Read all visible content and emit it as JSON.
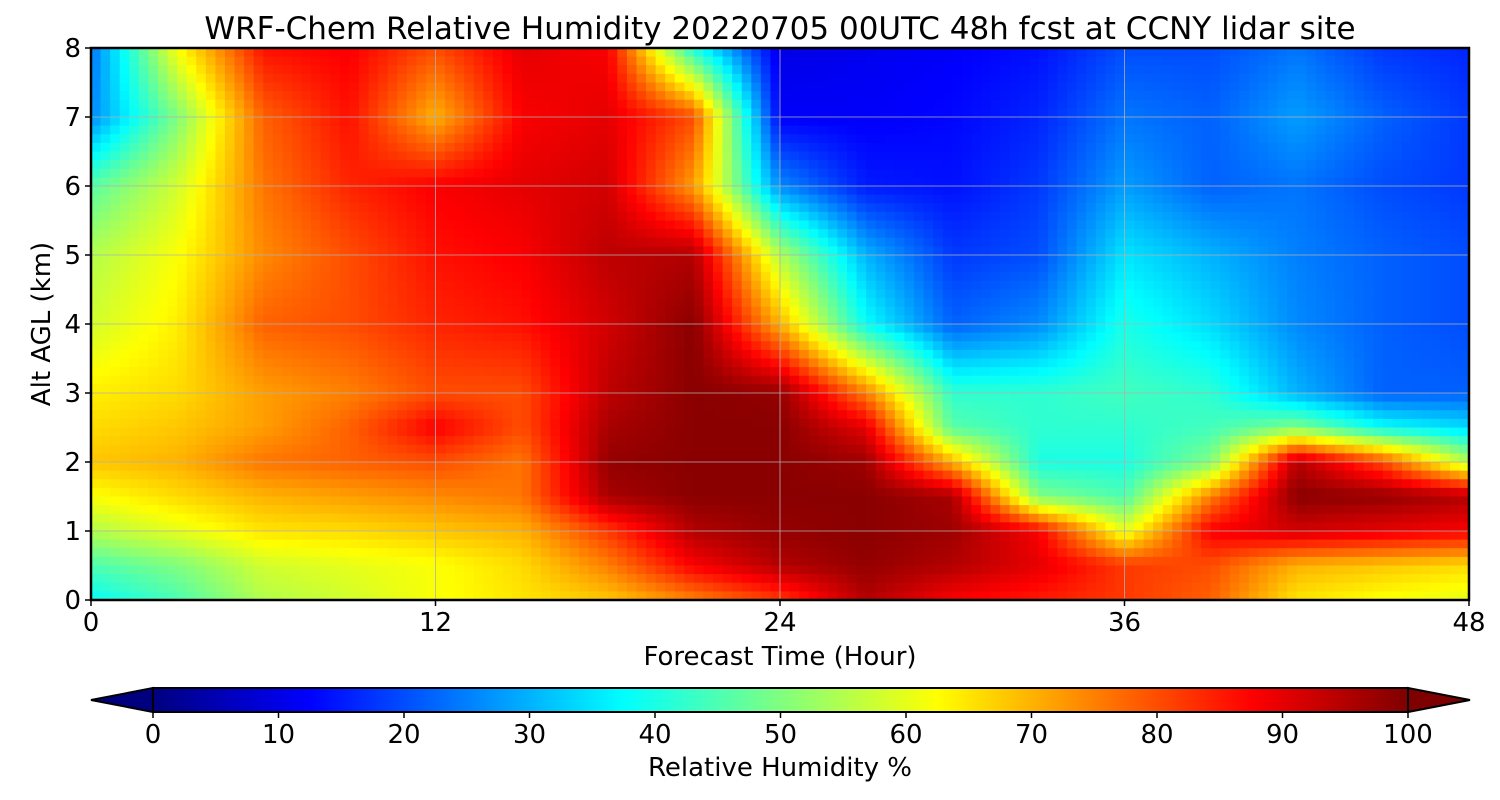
{
  "chart_data": {
    "type": "heatmap",
    "title": "WRF-Chem Relative Humidity 20220705 00UTC 48h fcst at CCNY lidar site",
    "xlabel": "Forecast Time (Hour)",
    "ylabel": "Alt AGL (km)",
    "xlim": [
      0,
      48
    ],
    "ylim": [
      0,
      8
    ],
    "x_ticks": [
      0,
      12,
      24,
      36,
      48
    ],
    "y_ticks": [
      0,
      1,
      2,
      3,
      4,
      5,
      6,
      7,
      8
    ],
    "grid": true,
    "colorbar": {
      "label": "Relative Humidity %",
      "colormap": "jet",
      "range": [
        0,
        100
      ],
      "ticks": [
        0,
        10,
        20,
        30,
        40,
        50,
        60,
        70,
        80,
        90,
        100
      ],
      "extend": "both",
      "orientation": "horizontal",
      "placement": "bottom"
    },
    "hours": [
      0,
      3,
      6,
      9,
      12,
      15,
      18,
      21,
      24,
      27,
      30,
      33,
      36,
      39,
      42,
      45,
      48
    ],
    "altitudes_km": [
      0,
      0.5,
      1,
      1.5,
      2,
      2.5,
      3,
      4,
      5,
      6,
      7,
      8
    ],
    "rh_percent": [
      [
        38,
        45,
        55,
        58,
        62,
        65,
        68,
        75,
        82,
        95,
        88,
        85,
        82,
        78,
        65,
        62,
        60
      ],
      [
        45,
        50,
        58,
        60,
        62,
        66,
        75,
        88,
        95,
        98,
        95,
        90,
        82,
        80,
        70,
        68,
        66
      ],
      [
        55,
        60,
        65,
        66,
        68,
        70,
        82,
        95,
        98,
        99,
        97,
        88,
        60,
        88,
        92,
        90,
        88
      ],
      [
        62,
        66,
        70,
        72,
        74,
        76,
        96,
        99,
        99,
        99,
        96,
        50,
        45,
        75,
        99,
        98,
        95
      ],
      [
        68,
        70,
        76,
        78,
        80,
        76,
        98,
        99,
        99,
        97,
        70,
        40,
        40,
        50,
        95,
        80,
        55
      ],
      [
        66,
        68,
        72,
        78,
        88,
        80,
        96,
        99,
        99,
        90,
        46,
        42,
        42,
        44,
        50,
        38,
        34
      ],
      [
        64,
        66,
        72,
        75,
        80,
        80,
        94,
        99,
        98,
        75,
        42,
        42,
        44,
        42,
        30,
        22,
        22
      ],
      [
        58,
        64,
        78,
        80,
        84,
        86,
        92,
        99,
        70,
        38,
        22,
        26,
        40,
        34,
        26,
        22,
        20
      ],
      [
        55,
        62,
        74,
        80,
        86,
        88,
        94,
        95,
        55,
        30,
        18,
        20,
        35,
        30,
        25,
        22,
        20
      ],
      [
        46,
        58,
        76,
        84,
        88,
        90,
        92,
        72,
        26,
        15,
        14,
        18,
        28,
        22,
        24,
        20,
        18
      ],
      [
        26,
        50,
        78,
        86,
        70,
        88,
        90,
        80,
        12,
        12,
        13,
        16,
        24,
        22,
        28,
        22,
        18
      ],
      [
        24,
        62,
        86,
        88,
        80,
        90,
        88,
        40,
        10,
        11,
        12,
        14,
        20,
        20,
        24,
        18,
        16
      ]
    ]
  }
}
